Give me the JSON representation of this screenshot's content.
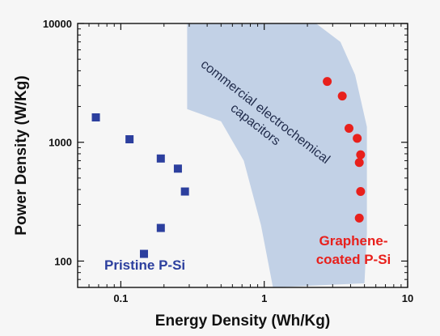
{
  "chart_data": {
    "type": "scatter",
    "x_scale": "log",
    "y_scale": "log",
    "xlim": [
      0.05,
      10
    ],
    "ylim": [
      60,
      10000
    ],
    "xlabel": "Energy Density (Wh/Kg)",
    "ylabel": "Power Density (W/Kg)",
    "x_ticks": [
      {
        "value": 0.1,
        "label": "0.1"
      },
      {
        "value": 1,
        "label": "1"
      },
      {
        "value": 10,
        "label": "10"
      }
    ],
    "y_ticks": [
      {
        "value": 100,
        "label": "100"
      },
      {
        "value": 1000,
        "label": "1000"
      },
      {
        "value": 10000,
        "label": "10000"
      }
    ],
    "grid": false,
    "series": [
      {
        "name": "Pristine P-Si",
        "color": "#2c3f9e",
        "marker": "square",
        "points": [
          {
            "x": 0.067,
            "y": 1620
          },
          {
            "x": 0.115,
            "y": 1060
          },
          {
            "x": 0.19,
            "y": 730
          },
          {
            "x": 0.25,
            "y": 600
          },
          {
            "x": 0.28,
            "y": 385
          },
          {
            "x": 0.19,
            "y": 190
          },
          {
            "x": 0.145,
            "y": 115
          }
        ]
      },
      {
        "name": "Graphene-coated P-Si",
        "color": "#e8201c",
        "marker": "circle",
        "points": [
          {
            "x": 2.75,
            "y": 3250
          },
          {
            "x": 3.5,
            "y": 2450
          },
          {
            "x": 3.9,
            "y": 1310
          },
          {
            "x": 4.45,
            "y": 1080
          },
          {
            "x": 4.7,
            "y": 785
          },
          {
            "x": 4.6,
            "y": 675
          },
          {
            "x": 4.7,
            "y": 385
          },
          {
            "x": 4.6,
            "y": 230
          }
        ]
      }
    ],
    "region": {
      "label_lines": [
        "commercial electrochemical",
        "capacitors"
      ],
      "color": "#c2d1e6",
      "polygon": [
        [
          0.29,
          10000
        ],
        [
          2.3,
          10000
        ],
        [
          3.4,
          7000
        ],
        [
          4.3,
          3700
        ],
        [
          5.2,
          1350
        ],
        [
          5.2,
          170
        ],
        [
          5.0,
          65
        ],
        [
          1.15,
          60
        ],
        [
          0.95,
          200
        ],
        [
          0.72,
          700
        ],
        [
          0.5,
          1500
        ],
        [
          0.29,
          1900
        ]
      ]
    },
    "annotations": [
      {
        "text": "Pristine P-Si",
        "color": "#2c3f9e"
      },
      {
        "text_lines": [
          "Graphene-",
          "coated P-Si"
        ],
        "color": "#e8201c"
      }
    ]
  }
}
